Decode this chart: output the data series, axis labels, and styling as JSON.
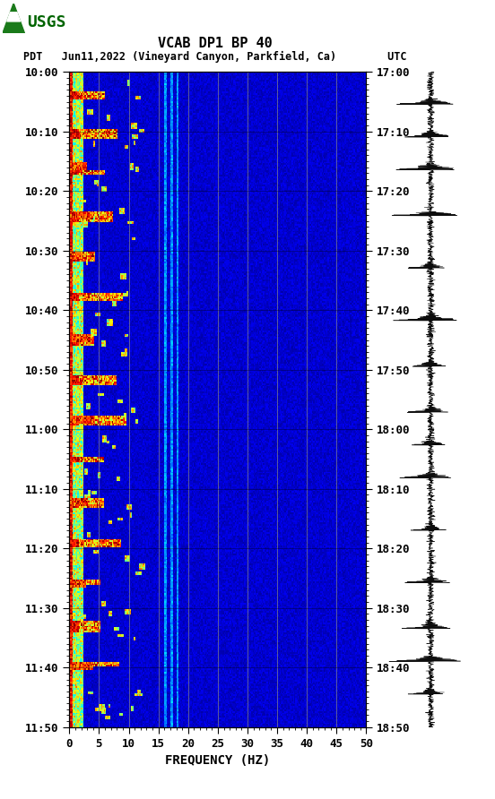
{
  "title_line1": "VCAB DP1 BP 40",
  "title_line2": "PDT   Jun11,2022 (Vineyard Canyon, Parkfield, Ca)        UTC",
  "xlabel": "FREQUENCY (HZ)",
  "freq_min": 0,
  "freq_max": 50,
  "yticks_pdt": [
    "10:00",
    "10:10",
    "10:20",
    "10:30",
    "10:40",
    "10:50",
    "11:00",
    "11:10",
    "11:20",
    "11:30",
    "11:40",
    "11:50"
  ],
  "yticks_utc": [
    "17:00",
    "17:10",
    "17:20",
    "17:30",
    "17:40",
    "17:50",
    "18:00",
    "18:10",
    "18:20",
    "18:30",
    "18:40",
    "18:50"
  ],
  "freq_gridlines": [
    5,
    10,
    15,
    20,
    25,
    30,
    35,
    40,
    45
  ],
  "background_color": "#ffffff",
  "fig_width": 5.52,
  "fig_height": 8.92
}
